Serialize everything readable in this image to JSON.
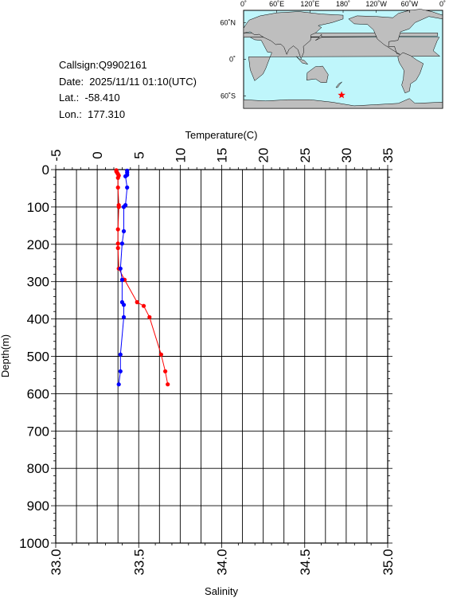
{
  "info": {
    "callsign": "Callsign:Q9902161",
    "date": "Date:  2025/11/11 01:10(UTC)",
    "lat": "Lat.:  -58.410",
    "lon": "Lon.:  177.310"
  },
  "map": {
    "lon_labels": [
      "0˚",
      "60˚E",
      "120˚E",
      "180˚",
      "120˚W",
      "60˚W",
      "0˚"
    ],
    "lat_labels": [
      "60˚N",
      "0˚",
      "60˚S"
    ],
    "float_position": {
      "lat": -58.41,
      "lon": 177.31
    },
    "colors": {
      "ocean": "#bff6fb",
      "land": "#bebebe",
      "marker": "#ff0000"
    }
  },
  "chart_data": {
    "type": "line",
    "xlabel_top": "Temperature(C)",
    "xlabel_bottom": "Salinity",
    "ylabel": "Depth(m)",
    "temp_range": [
      -5,
      35
    ],
    "temp_ticks": [
      "-5",
      "0",
      "5",
      "10",
      "15",
      "20",
      "25",
      "30",
      "35"
    ],
    "sal_range": [
      33.0,
      35.0
    ],
    "sal_ticks": [
      "33.0",
      "33.5",
      "34.0",
      "34.5",
      "35.0"
    ],
    "depth_range": [
      0,
      1000
    ],
    "depth_ticks": [
      "0",
      "100",
      "200",
      "300",
      "400",
      "500",
      "600",
      "700",
      "800",
      "900",
      "1000"
    ],
    "grid": true,
    "series": [
      {
        "color": "#ff0000",
        "axis": "temperature",
        "points": [
          [
            2.3,
            2
          ],
          [
            2.3,
            5
          ],
          [
            2.4,
            8
          ],
          [
            2.5,
            12
          ],
          [
            2.6,
            16
          ],
          [
            2.5,
            22
          ],
          [
            2.5,
            48
          ],
          [
            2.6,
            95
          ],
          [
            2.6,
            100
          ],
          [
            2.5,
            160
          ],
          [
            2.5,
            198
          ],
          [
            2.5,
            210
          ],
          [
            2.6,
            265
          ],
          [
            3.3,
            295
          ],
          [
            4.8,
            355
          ],
          [
            5.6,
            365
          ],
          [
            6.3,
            395
          ],
          [
            7.7,
            495
          ],
          [
            8.2,
            540
          ],
          [
            8.5,
            575
          ]
        ]
      },
      {
        "color": "#0000ff",
        "axis": "salinity",
        "points": [
          [
            33.43,
            3
          ],
          [
            33.43,
            8
          ],
          [
            33.43,
            14
          ],
          [
            33.42,
            18
          ],
          [
            33.43,
            48
          ],
          [
            33.42,
            95
          ],
          [
            33.41,
            100
          ],
          [
            33.41,
            165
          ],
          [
            33.4,
            198
          ],
          [
            33.39,
            265
          ],
          [
            33.4,
            295
          ],
          [
            33.4,
            355
          ],
          [
            33.41,
            362
          ],
          [
            33.41,
            395
          ],
          [
            33.39,
            495
          ],
          [
            33.39,
            540
          ],
          [
            33.38,
            575
          ]
        ]
      }
    ]
  }
}
